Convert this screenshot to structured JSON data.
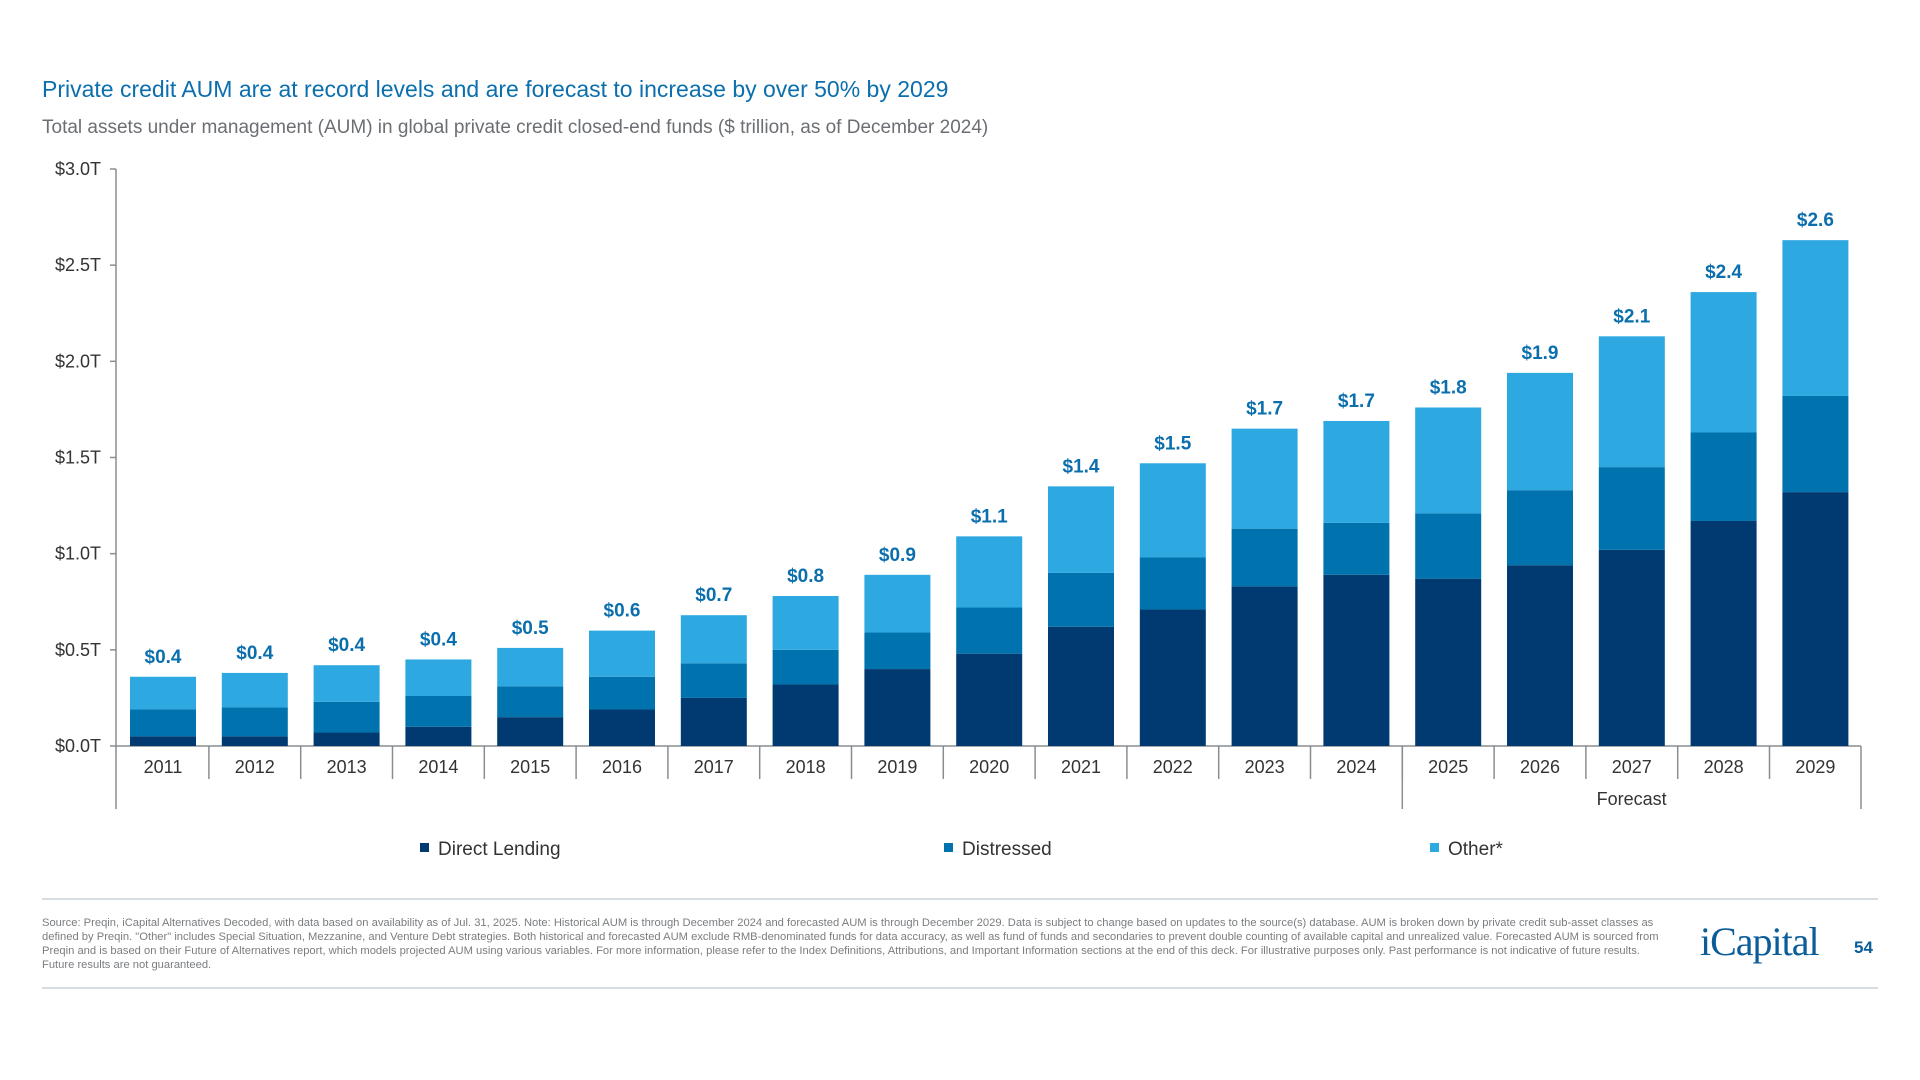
{
  "title": "Private credit AUM are at record levels and are forecast to increase by over 50% by 2029",
  "subtitle": "Total assets under management (AUM) in global private credit closed-end funds ($ trillion, as of December 2024)",
  "source": "Source: Preqin, iCapital Alternatives Decoded, with data based on availability as of Jul. 31, 2025. Note: Historical AUM is through December 2024 and forecasted AUM is through December 2029. Data is subject to change based on updates to the source(s) database. AUM is broken down by private credit sub-asset classes as defined by Preqin. \"Other\" includes Special Situation, Mezzanine, and Venture Debt strategies. Both historical and forecasted AUM exclude RMB-denominated funds for data accuracy, as well as fund of funds and secondaries to prevent double counting of available capital and unrealized value. Forecasted AUM is sourced from Preqin and is based on their Future of Alternatives report, which models projected AUM using various variables. For more information, please refer to the Index Definitions, Attributions, and Important Information sections at the end of this deck. For illustrative purposes only. Past performance is not indicative of future results. Future results are not guaranteed.",
  "logo": "iCapital",
  "page_number": "54",
  "chart_data": {
    "type": "bar",
    "stacked": true,
    "categories": [
      "2011",
      "2012",
      "2013",
      "2014",
      "2015",
      "2016",
      "2017",
      "2018",
      "2019",
      "2020",
      "2021",
      "2022",
      "2023",
      "2024",
      "2025",
      "2026",
      "2027",
      "2028",
      "2029"
    ],
    "series": [
      {
        "name": "Direct Lending",
        "color": "#003a70",
        "values": [
          0.05,
          0.05,
          0.07,
          0.1,
          0.15,
          0.19,
          0.25,
          0.32,
          0.4,
          0.48,
          0.62,
          0.71,
          0.83,
          0.89,
          0.87,
          0.94,
          1.02,
          1.17,
          1.32
        ]
      },
      {
        "name": "Distressed",
        "color": "#0072ad",
        "values": [
          0.14,
          0.15,
          0.16,
          0.16,
          0.16,
          0.17,
          0.18,
          0.18,
          0.19,
          0.24,
          0.28,
          0.27,
          0.3,
          0.27,
          0.34,
          0.39,
          0.43,
          0.46,
          0.5
        ]
      },
      {
        "name": "Other*",
        "color": "#2ea8e0",
        "values": [
          0.17,
          0.18,
          0.19,
          0.19,
          0.2,
          0.24,
          0.25,
          0.28,
          0.3,
          0.37,
          0.45,
          0.49,
          0.52,
          0.53,
          0.55,
          0.61,
          0.68,
          0.73,
          0.81
        ]
      }
    ],
    "total_labels": [
      "$0.4",
      "$0.4",
      "$0.4",
      "$0.4",
      "$0.5",
      "$0.6",
      "$0.7",
      "$0.8",
      "$0.9",
      "$1.1",
      "$1.4",
      "$1.5",
      "$1.7",
      "$1.7",
      "$1.8",
      "$1.9",
      "$2.1",
      "$2.4",
      "$2.6"
    ],
    "yticks": [
      0,
      0.5,
      1.0,
      1.5,
      2.0,
      2.5,
      3.0
    ],
    "ytick_labels": [
      "$0.0T",
      "$0.5T",
      "$1.0T",
      "$1.5T",
      "$2.0T",
      "$2.5T",
      "$3.0T"
    ],
    "ylim": [
      0,
      3.0
    ],
    "group_label": "Forecast",
    "group_range": [
      "2025",
      "2029"
    ],
    "grid": false,
    "legend_position": "bottom"
  }
}
